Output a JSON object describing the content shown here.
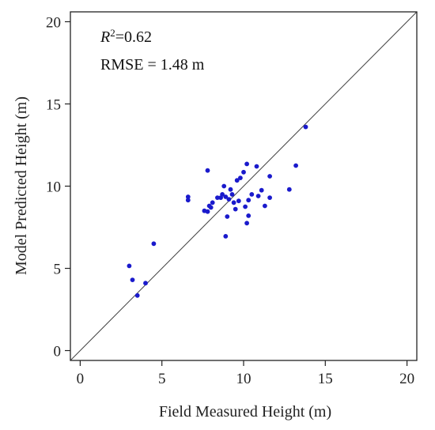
{
  "chart_data": {
    "type": "scatter",
    "xlabel": "Field Measured Height (m)",
    "ylabel": "Model Predicted Height (m)",
    "xlim": [
      -0.6,
      20.6
    ],
    "ylim": [
      -0.6,
      20.6
    ],
    "xticks": [
      0,
      5,
      10,
      15,
      20
    ],
    "yticks": [
      0,
      5,
      10,
      15,
      20
    ],
    "tick_labels_x": [
      "0",
      "5",
      "10",
      "15",
      "20"
    ],
    "tick_labels_y": [
      "0",
      "5",
      "10",
      "15",
      "20"
    ],
    "grid": false,
    "reference_line": "1:1",
    "point_color": "#1a1acc",
    "annotations": {
      "r2_label": "R",
      "r2_sup": "2",
      "r2_value": "=0.62",
      "rmse": "RMSE = 1.48 m"
    },
    "series": [
      {
        "points": [
          [
            3.0,
            5.15
          ],
          [
            3.2,
            4.3
          ],
          [
            3.5,
            3.35
          ],
          [
            4.0,
            4.1
          ],
          [
            4.5,
            6.5
          ],
          [
            6.6,
            9.35
          ],
          [
            6.6,
            9.15
          ],
          [
            7.6,
            8.5
          ],
          [
            7.8,
            10.95
          ],
          [
            7.8,
            8.45
          ],
          [
            7.9,
            8.8
          ],
          [
            8.0,
            8.7
          ],
          [
            8.1,
            9.0
          ],
          [
            8.4,
            9.3
          ],
          [
            8.6,
            9.3
          ],
          [
            8.7,
            9.5
          ],
          [
            8.8,
            10.0
          ],
          [
            8.9,
            6.95
          ],
          [
            8.9,
            9.35
          ],
          [
            9.0,
            8.15
          ],
          [
            9.1,
            9.2
          ],
          [
            9.2,
            9.8
          ],
          [
            9.3,
            9.5
          ],
          [
            9.4,
            9.0
          ],
          [
            9.5,
            8.6
          ],
          [
            9.6,
            10.35
          ],
          [
            9.7,
            9.1
          ],
          [
            9.8,
            10.5
          ],
          [
            10.0,
            10.85
          ],
          [
            10.1,
            8.75
          ],
          [
            10.2,
            11.35
          ],
          [
            10.2,
            7.75
          ],
          [
            10.3,
            9.15
          ],
          [
            10.3,
            8.2
          ],
          [
            10.5,
            9.5
          ],
          [
            10.8,
            11.2
          ],
          [
            10.9,
            9.4
          ],
          [
            11.1,
            9.75
          ],
          [
            11.3,
            8.8
          ],
          [
            11.6,
            10.6
          ],
          [
            11.6,
            9.3
          ],
          [
            12.8,
            9.8
          ],
          [
            13.2,
            11.25
          ],
          [
            13.8,
            13.6
          ]
        ]
      }
    ]
  }
}
